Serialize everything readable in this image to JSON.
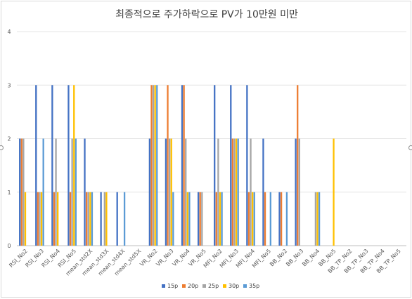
{
  "chart_data": {
    "type": "bar",
    "title": "최종적으로 주가하락으로 PV가 10만원 미만",
    "xlabel": "",
    "ylabel": "",
    "ylim": [
      0,
      4
    ],
    "yticks": [
      0,
      1,
      2,
      3,
      4
    ],
    "grid": true,
    "legend_position": "bottom",
    "categories": [
      "RSI_No2",
      "RSI_No3",
      "RSI_No4",
      "RSI_No5",
      "mean_std2X",
      "mean_std3X",
      "mean_std4X",
      "mean_std5X",
      "VR_No2",
      "VR_No3",
      "VR_No4",
      "VR_No5",
      "MFI_No2",
      "MFI_No3",
      "MFI_No4",
      "MFI_No5",
      "BB_No2",
      "BB_No3",
      "BB_No4",
      "BB_No5",
      "BB_TP_No2",
      "BB_TP_No3",
      "BB_TP_No4",
      "BB_TP_No5"
    ],
    "series": [
      {
        "name": "15p",
        "color": "#4472c4",
        "values": [
          2,
          3,
          3,
          3,
          2,
          1,
          1,
          0,
          2,
          2,
          3,
          1,
          3,
          3,
          3,
          2,
          1,
          2,
          0,
          0,
          0,
          0,
          0,
          0
        ]
      },
      {
        "name": "20p",
        "color": "#ed7d31",
        "values": [
          2,
          1,
          1,
          1,
          1,
          0,
          0,
          0,
          3,
          3,
          3,
          1,
          1,
          2,
          1,
          1,
          1,
          3,
          0,
          0,
          0,
          0,
          0,
          0
        ]
      },
      {
        "name": "25p",
        "color": "#a5a5a5",
        "values": [
          2,
          1,
          2,
          2,
          1,
          1,
          0,
          0,
          3,
          2,
          2,
          1,
          2,
          2,
          2,
          0,
          0,
          2,
          1,
          0,
          0,
          0,
          0,
          0
        ]
      },
      {
        "name": "30p",
        "color": "#ffc000",
        "values": [
          1,
          1,
          1,
          3,
          1,
          1,
          0,
          0,
          3,
          2,
          1,
          0,
          1,
          2,
          1,
          0,
          0,
          0,
          1,
          2,
          0,
          0,
          0,
          0
        ]
      },
      {
        "name": "35p",
        "color": "#5b9bd5",
        "values": [
          0,
          2,
          0,
          2,
          1,
          0,
          1,
          0,
          3,
          1,
          1,
          0,
          1,
          2,
          1,
          1,
          1,
          0,
          1,
          0,
          0,
          0,
          0,
          0
        ]
      }
    ]
  }
}
